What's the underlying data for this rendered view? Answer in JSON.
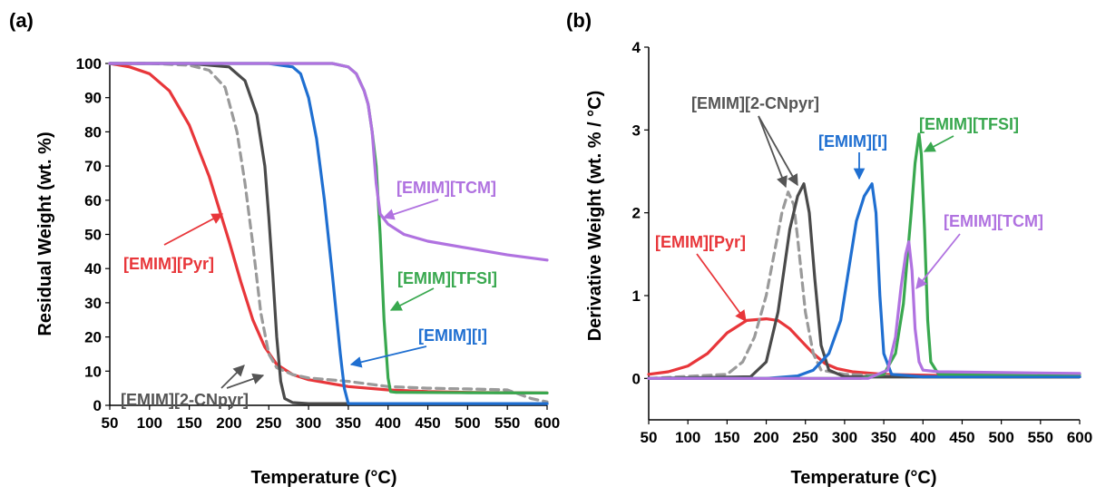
{
  "colors": {
    "pyr": "#e8363a",
    "cnpyr_dark": "#4a4a4a",
    "cnpyr_light": "#9a9a9a",
    "i": "#1f6fd1",
    "tfsi": "#39a84f",
    "tcm": "#b072e0"
  },
  "chart_data": [
    {
      "panel": "(a)",
      "type": "line",
      "xlabel": "Temperature (°C)",
      "ylabel": "Residual Weight (wt. %)",
      "xlim": [
        50,
        600
      ],
      "ylim": [
        0,
        100
      ],
      "xticks": [
        "50",
        "100",
        "150",
        "200",
        "250",
        "300",
        "350",
        "400",
        "450",
        "500",
        "550",
        "600"
      ],
      "yticks": [
        "0",
        "10",
        "20",
        "30",
        "40",
        "50",
        "60",
        "70",
        "80",
        "90",
        "100"
      ],
      "grid": false,
      "series": [
        {
          "name": "[EMIM][Pyr]",
          "color": "#e8363a",
          "dash": false,
          "x": [
            50,
            75,
            100,
            125,
            150,
            175,
            200,
            215,
            230,
            245,
            260,
            280,
            300,
            350,
            400,
            450,
            500,
            550,
            600
          ],
          "y": [
            100,
            99,
            97,
            92,
            82,
            67,
            48,
            36,
            25,
            17,
            12,
            9,
            7.5,
            5.5,
            4.5,
            4,
            3.8,
            3.7,
            3.6
          ]
        },
        {
          "name": "[EMIM][2-CNpyr]",
          "color": "#9a9a9a",
          "dash": true,
          "x": [
            50,
            100,
            150,
            175,
            195,
            210,
            220,
            230,
            240,
            250,
            260,
            280,
            300,
            350,
            400,
            450,
            500,
            550,
            580,
            600
          ],
          "y": [
            100,
            100,
            99.5,
            98,
            93,
            80,
            65,
            47,
            27,
            15,
            11,
            9,
            8,
            7,
            5.5,
            5,
            4.8,
            4.5,
            2,
            1
          ]
        },
        {
          "name": "[EMIM][2-CNpyr]",
          "color": "#4a4a4a",
          "dash": false,
          "x": [
            50,
            150,
            200,
            220,
            235,
            245,
            250,
            255,
            260,
            265,
            270,
            280,
            300,
            400,
            500,
            600
          ],
          "y": [
            100,
            100,
            99,
            95,
            85,
            70,
            55,
            38,
            20,
            7,
            2,
            0.8,
            0.5,
            0.5,
            0.5,
            0.5
          ]
        },
        {
          "name": "[EMIM][I]",
          "color": "#1f6fd1",
          "dash": false,
          "x": [
            50,
            250,
            280,
            290,
            300,
            310,
            320,
            330,
            340,
            345,
            350,
            400,
            500,
            600
          ],
          "y": [
            100,
            100,
            99,
            97,
            90,
            78,
            60,
            38,
            15,
            5,
            0.5,
            0.5,
            0.5,
            0.5
          ]
        },
        {
          "name": "[EMIM][TFSI]",
          "color": "#39a84f",
          "dash": false,
          "x": [
            50,
            330,
            350,
            360,
            370,
            375,
            380,
            385,
            390,
            395,
            400,
            403,
            410,
            500,
            600
          ],
          "y": [
            100,
            100,
            99,
            97,
            92,
            88,
            80,
            70,
            50,
            25,
            8,
            4,
            3.8,
            3.7,
            3.6
          ]
        },
        {
          "name": "[EMIM][TCM]",
          "color": "#b072e0",
          "dash": false,
          "x": [
            50,
            330,
            350,
            360,
            370,
            375,
            380,
            385,
            390,
            400,
            420,
            450,
            500,
            550,
            600
          ],
          "y": [
            100,
            100,
            99,
            97,
            92,
            88,
            80,
            65,
            56,
            53,
            50,
            48,
            46,
            44,
            42.5
          ]
        }
      ],
      "annotations": [
        "[EMIM][TCM]",
        "[EMIM][Pyr]",
        "[EMIM][TFSI]",
        "[EMIM][I]",
        "[EMIM][2-CNpyr]"
      ]
    },
    {
      "panel": "(b)",
      "type": "line",
      "xlabel": "Temperature (°C)",
      "ylabel": "Derivative Weight (wt. % / °C)",
      "xlim": [
        50,
        600
      ],
      "ylim": [
        -0.5,
        4
      ],
      "xticks": [
        "50",
        "100",
        "150",
        "200",
        "250",
        "300",
        "350",
        "400",
        "450",
        "500",
        "550",
        "600"
      ],
      "yticks": [
        "0",
        "1",
        "2",
        "3",
        "4"
      ],
      "grid": false,
      "series": [
        {
          "name": "[EMIM][Pyr]",
          "color": "#e8363a",
          "dash": false,
          "x": [
            50,
            75,
            100,
            125,
            150,
            175,
            200,
            215,
            230,
            245,
            260,
            275,
            290,
            310,
            350,
            400,
            450,
            500,
            600
          ],
          "y": [
            0.05,
            0.08,
            0.15,
            0.3,
            0.55,
            0.7,
            0.72,
            0.7,
            0.6,
            0.45,
            0.3,
            0.18,
            0.12,
            0.08,
            0.05,
            0.04,
            0.03,
            0.02,
            0.02
          ]
        },
        {
          "name": "[EMIM][2-CNpyr]",
          "color": "#9a9a9a",
          "dash": true,
          "x": [
            50,
            150,
            170,
            185,
            200,
            210,
            220,
            228,
            235,
            240,
            250,
            260,
            270,
            300,
            400,
            600
          ],
          "y": [
            0,
            0.05,
            0.2,
            0.5,
            1.0,
            1.5,
            2.0,
            2.25,
            2.1,
            1.7,
            0.8,
            0.3,
            0.1,
            0.05,
            0.02,
            0.02
          ]
        },
        {
          "name": "[EMIM][2-CNpyr]",
          "color": "#4a4a4a",
          "dash": false,
          "x": [
            50,
            180,
            200,
            215,
            230,
            240,
            248,
            255,
            262,
            270,
            280,
            300,
            400,
            600
          ],
          "y": [
            0,
            0.02,
            0.2,
            0.8,
            1.8,
            2.2,
            2.35,
            2.0,
            1.2,
            0.4,
            0.1,
            0.02,
            0.02,
            0.02
          ]
        },
        {
          "name": "[EMIM][I]",
          "color": "#1f6fd1",
          "dash": false,
          "x": [
            50,
            200,
            240,
            260,
            280,
            295,
            305,
            315,
            325,
            335,
            340,
            345,
            350,
            360,
            400,
            600
          ],
          "y": [
            0,
            0,
            0.03,
            0.1,
            0.3,
            0.7,
            1.3,
            1.9,
            2.2,
            2.35,
            2.0,
            1.0,
            0.3,
            0.05,
            0.02,
            0.02
          ]
        },
        {
          "name": "[EMIM][TFSI]",
          "color": "#39a84f",
          "dash": false,
          "x": [
            50,
            320,
            350,
            365,
            375,
            385,
            390,
            395,
            398,
            402,
            406,
            410,
            420,
            600
          ],
          "y": [
            0,
            0,
            0.05,
            0.3,
            0.9,
            2.0,
            2.6,
            2.95,
            2.7,
            1.8,
            0.7,
            0.2,
            0.05,
            0.05
          ]
        },
        {
          "name": "[EMIM][TCM]",
          "color": "#b072e0",
          "dash": false,
          "x": [
            50,
            330,
            355,
            365,
            372,
            378,
            382,
            386,
            390,
            395,
            400,
            420,
            600
          ],
          "y": [
            0,
            0,
            0.1,
            0.5,
            1.1,
            1.5,
            1.65,
            1.3,
            0.6,
            0.2,
            0.1,
            0.08,
            0.06
          ]
        }
      ],
      "annotations": [
        "[EMIM][2-CNpyr]",
        "[EMIM][I]",
        "[EMIM][TFSI]",
        "[EMIM][Pyr]",
        "[EMIM][TCM]"
      ]
    }
  ]
}
